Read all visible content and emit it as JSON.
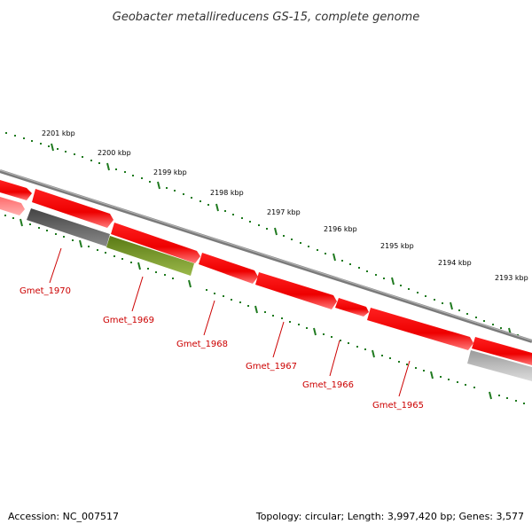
{
  "header": {
    "title": "Geobacter metallireducens GS-15, complete genome"
  },
  "footer": {
    "accession": "Accession: NC_007517",
    "summary": "Topology: circular; Length: 3,997,420 bp; Genes: 3,577"
  },
  "scale": {
    "labels": [
      "2201 kbp",
      "2200 kbp",
      "2199 kbp",
      "2198 kbp",
      "2197 kbp",
      "2196 kbp",
      "2195 kbp",
      "2194 kbp",
      "2193 kbp"
    ]
  },
  "genes": [
    {
      "label": "Gmet_1970",
      "strand": "reverse",
      "color": "#5a5a5a"
    },
    {
      "label": "Gmet_1969",
      "strand": "reverse",
      "color": "#6b8e23"
    },
    {
      "label": "Gmet_1968",
      "strand": "forward",
      "color": "#ff0000"
    },
    {
      "label": "Gmet_1967",
      "strand": "forward",
      "color": "#ff0000"
    },
    {
      "label": "Gmet_1966",
      "strand": "forward",
      "color": "#ff0000"
    },
    {
      "label": "Gmet_1965",
      "strand": "forward",
      "color": "#ff0000"
    }
  ],
  "colors": {
    "forward": "#ff0000",
    "reverse_grey": "#5a5a5a",
    "reverse_green": "#6b8e23",
    "backbone": "#7a7a7a",
    "tick": "#1f7a1f",
    "label": "#cc0000"
  }
}
